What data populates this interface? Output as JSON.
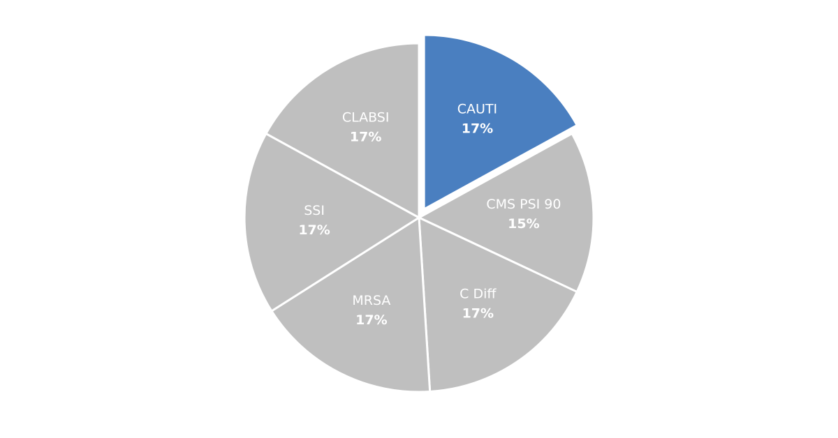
{
  "chart_data": {
    "type": "pie",
    "categories": [
      "CAUTI",
      "CMS PSI 90",
      "C Diff",
      "MRSA",
      "SSI",
      "CLABSI"
    ],
    "values": [
      17,
      15,
      17,
      17,
      17,
      17
    ],
    "value_labels": [
      "17%",
      "15%",
      "17%",
      "17%",
      "17%",
      "17%"
    ],
    "colors": [
      "#4a7fc0",
      "#bfbfbf",
      "#bfbfbf",
      "#bfbfbf",
      "#bfbfbf",
      "#bfbfbf"
    ]
  }
}
